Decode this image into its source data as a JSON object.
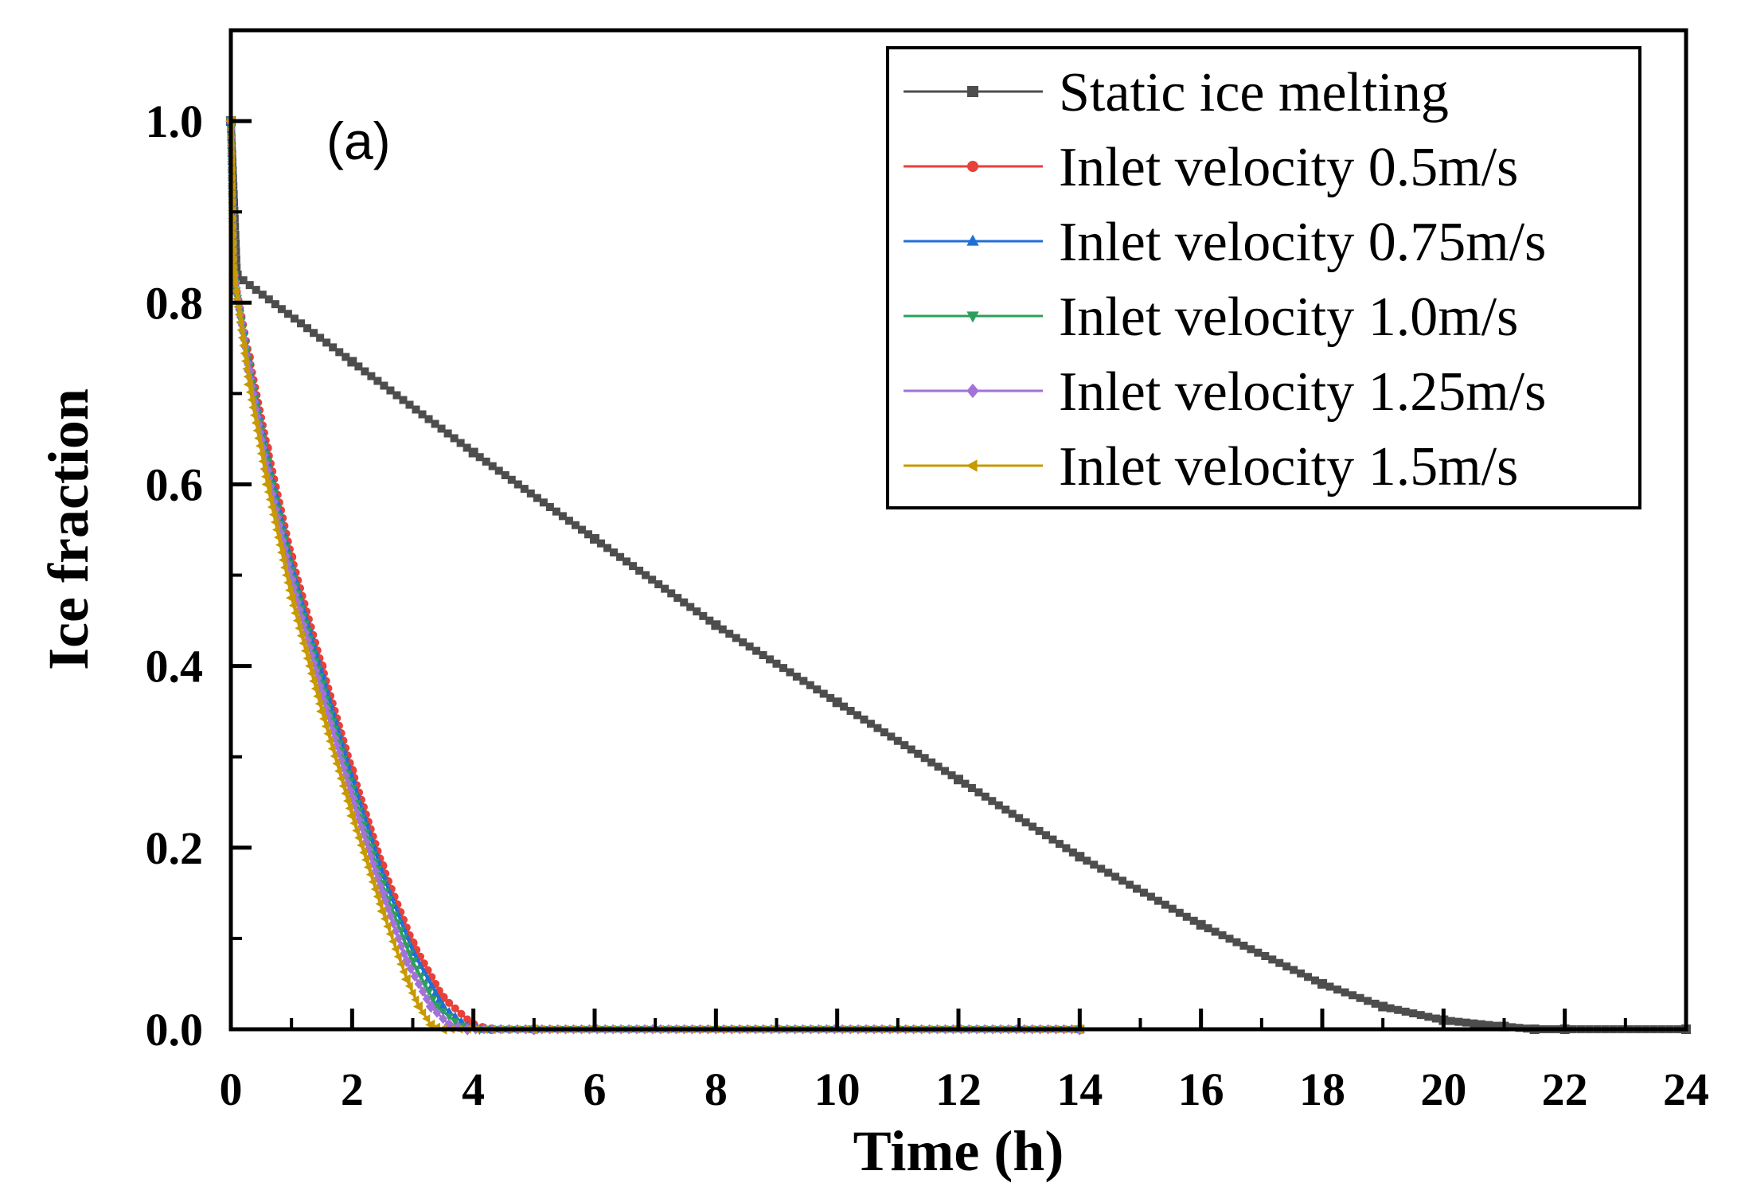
{
  "chart_data": {
    "type": "line",
    "title": "",
    "annotation": "(a)",
    "xlabel": "Time (h)",
    "ylabel": "Ice fraction",
    "xlim": [
      0,
      24
    ],
    "ylim": [
      0,
      1.1
    ],
    "xticks": [
      "0",
      "2",
      "4",
      "6",
      "8",
      "10",
      "12",
      "14",
      "16",
      "18",
      "20",
      "22",
      "24"
    ],
    "yticks": [
      "0.0",
      "0.2",
      "0.4",
      "0.6",
      "0.8",
      "1.0"
    ],
    "grid": false,
    "legend_position": "top-right",
    "series": [
      {
        "name": "Static ice melting",
        "color": "#4d4d4d",
        "marker": "square",
        "x": [
          0,
          0.1,
          2,
          4,
          6,
          8,
          10,
          12,
          14,
          16,
          18,
          19,
          20,
          21,
          21.5,
          22,
          24
        ],
        "y": [
          1.0,
          0.83,
          0.735,
          0.635,
          0.54,
          0.445,
          0.36,
          0.275,
          0.19,
          0.115,
          0.05,
          0.025,
          0.01,
          0.003,
          0.0,
          0.0,
          0.0
        ]
      },
      {
        "name": "Inlet velocity 0.5m/s",
        "color": "#e8403a",
        "marker": "circle",
        "x": [
          0,
          0.05,
          0.3,
          0.6,
          1.0,
          1.5,
          2.0,
          2.5,
          3.0,
          3.5,
          4.0,
          4.3,
          5.0,
          14.0
        ],
        "y": [
          1.0,
          0.83,
          0.74,
          0.64,
          0.52,
          0.4,
          0.285,
          0.18,
          0.095,
          0.035,
          0.005,
          0.0,
          0.0,
          0.0
        ]
      },
      {
        "name": "Inlet velocity 0.75m/s",
        "color": "#1f6fd6",
        "marker": "triangle-up",
        "x": [
          0,
          0.05,
          0.3,
          0.6,
          1.0,
          1.5,
          2.0,
          2.5,
          3.0,
          3.5,
          3.9,
          4.2,
          5.0,
          14.0
        ],
        "y": [
          1.0,
          0.83,
          0.735,
          0.63,
          0.51,
          0.39,
          0.275,
          0.17,
          0.085,
          0.025,
          0.003,
          0.0,
          0.0,
          0.0
        ]
      },
      {
        "name": "Inlet velocity 1.0m/s",
        "color": "#2ca05a",
        "marker": "triangle-down",
        "x": [
          0,
          0.05,
          0.3,
          0.6,
          1.0,
          1.5,
          2.0,
          2.5,
          3.0,
          3.4,
          3.8,
          4.1,
          5.0,
          14.0
        ],
        "y": [
          1.0,
          0.83,
          0.73,
          0.625,
          0.505,
          0.38,
          0.265,
          0.16,
          0.075,
          0.025,
          0.003,
          0.0,
          0.0,
          0.0
        ]
      },
      {
        "name": "Inlet velocity 1.25m/s",
        "color": "#a272d8",
        "marker": "diamond",
        "x": [
          0,
          0.05,
          0.3,
          0.6,
          1.0,
          1.5,
          2.0,
          2.5,
          2.9,
          3.3,
          3.6,
          3.9,
          5.0,
          14.0
        ],
        "y": [
          1.0,
          0.83,
          0.725,
          0.615,
          0.495,
          0.37,
          0.255,
          0.15,
          0.075,
          0.025,
          0.005,
          0.0,
          0.0,
          0.0
        ]
      },
      {
        "name": "Inlet velocity 1.5m/s",
        "color": "#c89a00",
        "marker": "triangle-left",
        "x": [
          0,
          0.05,
          0.3,
          0.6,
          1.0,
          1.5,
          2.0,
          2.5,
          2.9,
          3.1,
          3.3,
          3.5,
          5.0,
          14.0
        ],
        "y": [
          1.0,
          0.83,
          0.71,
          0.6,
          0.475,
          0.35,
          0.235,
          0.13,
          0.055,
          0.025,
          0.005,
          0.0,
          0.0,
          0.0
        ]
      }
    ]
  }
}
